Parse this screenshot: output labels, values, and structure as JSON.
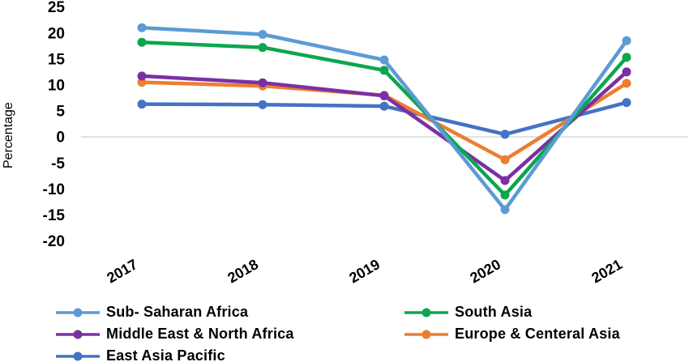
{
  "chart_data": {
    "type": "line",
    "title": "",
    "xlabel": "",
    "ylabel": "Percentage",
    "categories": [
      "2017",
      "2018",
      "2019",
      "2020",
      "2021"
    ],
    "yticks": [
      25,
      20,
      15,
      10,
      5,
      0,
      -5,
      -10,
      -15,
      -20
    ],
    "ylim": [
      -20,
      25
    ],
    "grid": "zero-line-only",
    "legend_position": "bottom",
    "series": [
      {
        "name": "Sub- Saharan Africa",
        "color": "#5B9BD5",
        "values": [
          21.0,
          19.7,
          14.8,
          -14.0,
          18.5
        ]
      },
      {
        "name": "South Asia",
        "color": "#0CA64E",
        "values": [
          18.2,
          17.2,
          12.8,
          -11.2,
          15.3
        ]
      },
      {
        "name": "Middle East & North Africa",
        "color": "#7A30A5",
        "values": [
          11.7,
          10.4,
          7.9,
          -8.4,
          12.5
        ]
      },
      {
        "name": "Europe & Centeral Asia",
        "color": "#ED7D31",
        "values": [
          10.5,
          9.8,
          8.0,
          -4.4,
          10.3
        ]
      },
      {
        "name": "East Asia Pacific",
        "color": "#4472C4",
        "values": [
          6.3,
          6.2,
          5.9,
          0.5,
          6.6
        ]
      }
    ],
    "draw_order": [
      4,
      3,
      2,
      1,
      0
    ],
    "legend_columns": [
      [
        0,
        2,
        4
      ],
      [
        1,
        3
      ]
    ]
  }
}
